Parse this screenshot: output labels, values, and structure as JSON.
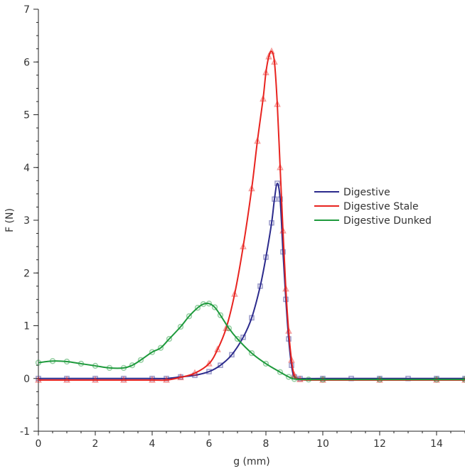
{
  "chart_data": {
    "type": "line",
    "xlabel": "g (mm)",
    "ylabel": "F (N)",
    "xlim": [
      0,
      15
    ],
    "ylim": [
      -1,
      7
    ],
    "xticks": [
      0,
      2,
      4,
      6,
      8,
      10,
      12,
      14
    ],
    "yticks": [
      -1,
      0,
      1,
      2,
      3,
      4,
      5,
      6,
      7
    ],
    "x_minor_step": 0.5,
    "y_minor_step": 0.25,
    "grid": false,
    "legend_position": "right",
    "series": [
      {
        "name": "Digestive",
        "color": "#2b2a8c",
        "marker": "square",
        "x": [
          0,
          1,
          2,
          3,
          4,
          4.5,
          5,
          5.5,
          6,
          6.4,
          6.8,
          7.2,
          7.5,
          7.8,
          8.0,
          8.2,
          8.3,
          8.4,
          8.5,
          8.6,
          8.7,
          8.8,
          8.9,
          9.0,
          9.2,
          10,
          11,
          12,
          13,
          14,
          15
        ],
        "y": [
          0,
          0,
          0,
          0,
          0,
          0,
          0.03,
          0.06,
          0.13,
          0.25,
          0.45,
          0.78,
          1.15,
          1.75,
          2.3,
          2.95,
          3.4,
          3.7,
          3.4,
          2.4,
          1.5,
          0.75,
          0.25,
          0.03,
          0,
          0,
          0,
          0,
          0,
          0,
          0
        ]
      },
      {
        "name": "Digestive Stale",
        "color": "#e8231f",
        "marker": "triangle",
        "x": [
          0,
          1,
          2,
          3,
          4,
          4.5,
          5,
          5.5,
          6,
          6.3,
          6.6,
          6.9,
          7.2,
          7.5,
          7.7,
          7.9,
          8.0,
          8.1,
          8.2,
          8.3,
          8.4,
          8.5,
          8.6,
          8.7,
          8.8,
          8.9,
          9.0,
          9.2,
          10,
          12,
          14,
          15
        ],
        "y": [
          -0.03,
          -0.03,
          -0.03,
          -0.03,
          -0.03,
          -0.03,
          0.02,
          0.1,
          0.28,
          0.55,
          0.95,
          1.6,
          2.5,
          3.6,
          4.5,
          5.3,
          5.8,
          6.1,
          6.2,
          6.0,
          5.2,
          4.0,
          2.8,
          1.7,
          0.9,
          0.35,
          0.06,
          -0.02,
          -0.03,
          -0.03,
          -0.03,
          -0.03
        ]
      },
      {
        "name": "Digestive Dunked",
        "color": "#1e9a3c",
        "marker": "circle",
        "x": [
          0,
          0.5,
          1,
          1.5,
          2,
          2.5,
          3,
          3.3,
          3.6,
          4,
          4.3,
          4.6,
          5,
          5.3,
          5.6,
          5.8,
          6.0,
          6.2,
          6.4,
          6.7,
          7.0,
          7.5,
          8.0,
          8.5,
          8.8,
          9.0,
          9.5,
          10,
          12,
          14,
          15
        ],
        "y": [
          0.3,
          0.33,
          0.32,
          0.28,
          0.24,
          0.2,
          0.2,
          0.25,
          0.35,
          0.5,
          0.58,
          0.75,
          0.98,
          1.18,
          1.34,
          1.41,
          1.42,
          1.35,
          1.2,
          0.95,
          0.75,
          0.48,
          0.28,
          0.12,
          0.03,
          -0.01,
          -0.02,
          -0.02,
          -0.02,
          -0.02,
          -0.02
        ]
      }
    ]
  }
}
